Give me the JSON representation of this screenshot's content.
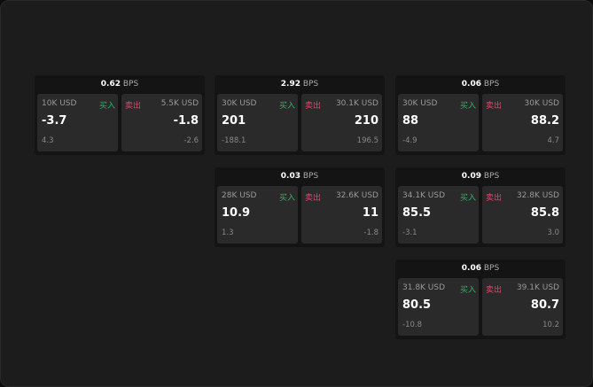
{
  "unit": "BPS",
  "buy_label": "买入",
  "sell_label": "卖出",
  "colors": {
    "buy": "#2fb463",
    "sell": "#e0456c"
  },
  "cards": [
    {
      "spread": "0.62",
      "buy": {
        "size": "10K USD",
        "price": "-3.7",
        "change": "4.3"
      },
      "sell": {
        "size": "5.5K USD",
        "price": "-1.8",
        "change": "-2.6"
      }
    },
    {
      "spread": "2.92",
      "buy": {
        "size": "30K USD",
        "price": "201",
        "change": "-188.1"
      },
      "sell": {
        "size": "30.1K USD",
        "price": "210",
        "change": "196.5"
      }
    },
    {
      "spread": "0.06",
      "buy": {
        "size": "30K USD",
        "price": "88",
        "change": "-4.9"
      },
      "sell": {
        "size": "30K USD",
        "price": "88.2",
        "change": "4.7"
      }
    },
    {
      "spread": "0.03",
      "buy": {
        "size": "28K USD",
        "price": "10.9",
        "change": "1.3"
      },
      "sell": {
        "size": "32.6K USD",
        "price": "11",
        "change": "-1.8"
      }
    },
    {
      "spread": "0.09",
      "buy": {
        "size": "34.1K USD",
        "price": "85.5",
        "change": "-3.1"
      },
      "sell": {
        "size": "32.8K USD",
        "price": "85.8",
        "change": "3.0"
      }
    },
    {
      "spread": "0.06",
      "buy": {
        "size": "31.8K USD",
        "price": "80.5",
        "change": "-10.8"
      },
      "sell": {
        "size": "39.1K USD",
        "price": "80.7",
        "change": "10.2"
      }
    }
  ]
}
